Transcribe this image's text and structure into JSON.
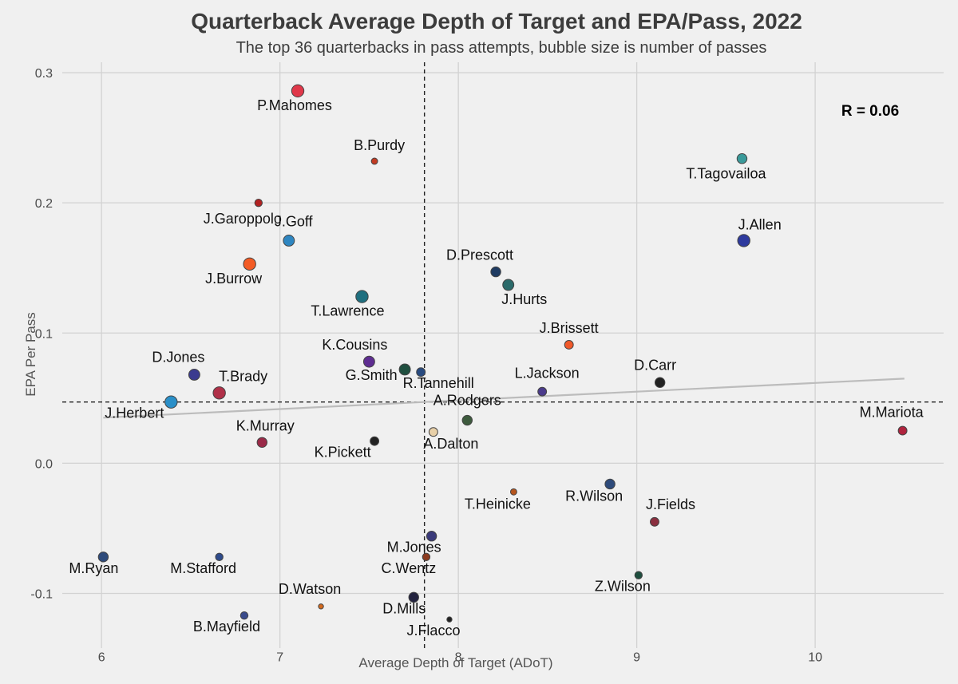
{
  "chart_data": {
    "type": "scatter",
    "title": "Quarterback Average Depth of Target and EPA/Pass, 2022",
    "subtitle": "The top 36 quarterbacks in pass attempts, bubble size is number of passes",
    "xlabel": "Average Depth of Target (ADoT)",
    "ylabel": "EPA Per Pass",
    "xlim": [
      5.78,
      10.72
    ],
    "ylim": [
      -0.142,
      0.308
    ],
    "x_ticks": [
      6,
      7,
      8,
      9,
      10
    ],
    "x_tick_labels": [
      "6",
      "7",
      "8",
      "9",
      "10"
    ],
    "y_ticks": [
      -0.1,
      0,
      0.1,
      0.2,
      0.3
    ],
    "y_tick_labels": [
      "-0.1",
      "0.0",
      "0.1",
      "0.2",
      "0.3"
    ],
    "grid": true,
    "mean_lines": {
      "x": 7.81,
      "y": 0.047
    },
    "trend_line": {
      "x": [
        6.01,
        10.5
      ],
      "y": [
        0.035,
        0.065
      ]
    },
    "annotation": "R = 0.06",
    "points": [
      {
        "name": "P.Mahomes",
        "x": 7.1,
        "y": 0.286,
        "size": 8,
        "color": "#e0384a"
      },
      {
        "name": "B.Purdy",
        "x": 7.53,
        "y": 0.232,
        "size": 3,
        "color": "#c23b22"
      },
      {
        "name": "T.Tagovailoa",
        "x": 9.59,
        "y": 0.234,
        "size": 6,
        "color": "#3a9a9a"
      },
      {
        "name": "J.Garoppolo",
        "x": 6.88,
        "y": 0.2,
        "size": 4,
        "color": "#b22222"
      },
      {
        "name": "J.Goff",
        "x": 7.05,
        "y": 0.171,
        "size": 7,
        "color": "#2e86c1"
      },
      {
        "name": "J.Allen",
        "x": 9.6,
        "y": 0.171,
        "size": 8,
        "color": "#2e3a9e"
      },
      {
        "name": "J.Burrow",
        "x": 6.83,
        "y": 0.153,
        "size": 8,
        "color": "#f35b24"
      },
      {
        "name": "D.Prescott",
        "x": 8.21,
        "y": 0.147,
        "size": 6,
        "color": "#1f3b62"
      },
      {
        "name": "J.Hurts",
        "x": 8.28,
        "y": 0.137,
        "size": 7,
        "color": "#2b6b6b"
      },
      {
        "name": "T.Lawrence",
        "x": 7.46,
        "y": 0.128,
        "size": 8,
        "color": "#1f6f7f"
      },
      {
        "name": "J.Brissett",
        "x": 8.62,
        "y": 0.091,
        "size": 5,
        "color": "#f0592a"
      },
      {
        "name": "K.Cousins",
        "x": 7.5,
        "y": 0.078,
        "size": 7,
        "color": "#5e2d91"
      },
      {
        "name": "G.Smith",
        "x": 7.7,
        "y": 0.072,
        "size": 7,
        "color": "#1f4f3f"
      },
      {
        "name": "R.Tannehill",
        "x": 7.79,
        "y": 0.07,
        "size": 5,
        "color": "#284b80"
      },
      {
        "name": "D.Jones",
        "x": 6.52,
        "y": 0.068,
        "size": 7,
        "color": "#3b3b8f"
      },
      {
        "name": "D.Carr",
        "x": 9.13,
        "y": 0.062,
        "size": 6,
        "color": "#222222"
      },
      {
        "name": "L.Jackson",
        "x": 8.47,
        "y": 0.055,
        "size": 5,
        "color": "#4b3b8b"
      },
      {
        "name": "T.Brady",
        "x": 6.66,
        "y": 0.054,
        "size": 8,
        "color": "#b03048"
      },
      {
        "name": "J.Herbert",
        "x": 6.39,
        "y": 0.047,
        "size": 8,
        "color": "#2a8fc8"
      },
      {
        "name": "A.Rodgers",
        "x": 8.05,
        "y": 0.033,
        "size": 6,
        "color": "#3d5a3d"
      },
      {
        "name": "A.Dalton",
        "x": 7.86,
        "y": 0.024,
        "size": 5,
        "color": "#e8d0a8"
      },
      {
        "name": "M.Mariota",
        "x": 10.49,
        "y": 0.025,
        "size": 5,
        "color": "#b0243e"
      },
      {
        "name": "K.Murray",
        "x": 6.9,
        "y": 0.016,
        "size": 6,
        "color": "#9a2a48"
      },
      {
        "name": "K.Pickett",
        "x": 7.53,
        "y": 0.017,
        "size": 5,
        "color": "#222222"
      },
      {
        "name": "T.Heinicke",
        "x": 8.31,
        "y": -0.022,
        "size": 3,
        "color": "#b5541c"
      },
      {
        "name": "R.Wilson",
        "x": 8.85,
        "y": -0.016,
        "size": 6,
        "color": "#2e4b7b"
      },
      {
        "name": "J.Fields",
        "x": 9.1,
        "y": -0.045,
        "size": 5,
        "color": "#8a2f3f"
      },
      {
        "name": "M.Jones",
        "x": 7.85,
        "y": -0.056,
        "size": 6,
        "color": "#3a3a7a"
      },
      {
        "name": "C.Wentz",
        "x": 7.82,
        "y": -0.072,
        "size": 4,
        "color": "#8b3a1e"
      },
      {
        "name": "M.Ryan",
        "x": 6.01,
        "y": -0.072,
        "size": 6,
        "color": "#2e4b7b"
      },
      {
        "name": "M.Stafford",
        "x": 6.66,
        "y": -0.072,
        "size": 4,
        "color": "#2e4b8b"
      },
      {
        "name": "Z.Wilson",
        "x": 9.01,
        "y": -0.086,
        "size": 4,
        "color": "#1f4f3f"
      },
      {
        "name": "D.Mills",
        "x": 7.75,
        "y": -0.103,
        "size": 6,
        "color": "#23233f"
      },
      {
        "name": "D.Watson",
        "x": 7.23,
        "y": -0.11,
        "size": 2,
        "color": "#d2691e"
      },
      {
        "name": "J.Flacco",
        "x": 7.95,
        "y": -0.12,
        "size": 2,
        "color": "#222222"
      },
      {
        "name": "B.Mayfield",
        "x": 6.8,
        "y": -0.117,
        "size": 4,
        "color": "#3a4b8b"
      }
    ]
  }
}
